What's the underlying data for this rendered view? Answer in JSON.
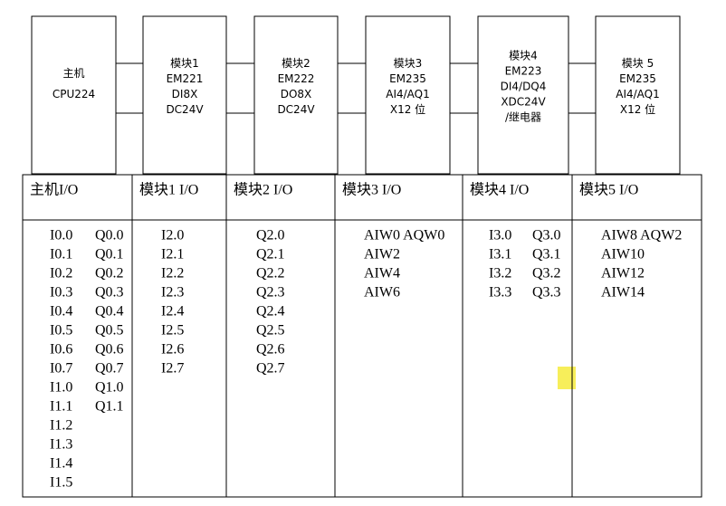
{
  "modules": [
    {
      "lines": [
        "主机",
        "CPU224"
      ]
    },
    {
      "lines": [
        "模块1",
        "EM221",
        "DI8X",
        "DC24V"
      ]
    },
    {
      "lines": [
        "模块2",
        "EM222",
        "DO8X",
        "DC24V"
      ]
    },
    {
      "lines": [
        "模块3",
        "EM235",
        "AI4/AQ1",
        "X12 位"
      ]
    },
    {
      "lines": [
        "模块4",
        "EM223",
        "DI4/DQ4",
        "XDC24V",
        "/继电器"
      ]
    },
    {
      "lines": [
        "模块 5",
        "EM235",
        "AI4/AQ1",
        "X12 位"
      ]
    }
  ],
  "table": {
    "headers": [
      "主机I/O",
      "模块1 I/O",
      "模块2 I/O",
      "模块3 I/O",
      "模块4 I/O",
      "模块5 I/O"
    ],
    "columns": [
      {
        "rows": [
          [
            "I0.0",
            "Q0.0"
          ],
          [
            "I0.1",
            "Q0.1"
          ],
          [
            "I0.2",
            "Q0.2"
          ],
          [
            "I0.3",
            "Q0.3"
          ],
          [
            "I0.4",
            "Q0.4"
          ],
          [
            "I0.5",
            "Q0.5"
          ],
          [
            "I0.6",
            "Q0.6"
          ],
          [
            "I0.7",
            "Q0.7"
          ],
          [
            "I1.0",
            "Q1.0"
          ],
          [
            "I1.1",
            "Q1.1"
          ],
          [
            "I1.2"
          ],
          [
            "I1.3"
          ],
          [
            "I1.4"
          ],
          [
            "I1.5"
          ]
        ]
      },
      {
        "rows": [
          [
            "I2.0"
          ],
          [
            "I2.1"
          ],
          [
            "I2.2"
          ],
          [
            "I2.3"
          ],
          [
            "I2.4"
          ],
          [
            "I2.5"
          ],
          [
            "I2.6"
          ],
          [
            "I2.7"
          ]
        ]
      },
      {
        "rows": [
          [
            "Q2.0"
          ],
          [
            "Q2.1"
          ],
          [
            "Q2.2"
          ],
          [
            "Q2.3"
          ],
          [
            "Q2.4"
          ],
          [
            "Q2.5"
          ],
          [
            "Q2.6"
          ],
          [
            "Q2.7"
          ]
        ]
      },
      {
        "rows": [
          [
            "AIW0 AQW0"
          ],
          [
            "AIW2"
          ],
          [
            "AIW4"
          ],
          [
            "AIW6"
          ]
        ]
      },
      {
        "rows": [
          [
            "I3.0",
            "Q3.0"
          ],
          [
            "I3.1",
            "Q3.1"
          ],
          [
            "I3.2",
            "Q3.2"
          ],
          [
            "I3.3",
            "Q3.3"
          ]
        ]
      },
      {
        "rows": [
          [
            "AIW8 AQW2"
          ],
          [
            "AIW10"
          ],
          [
            "AIW12"
          ],
          [
            "AIW14"
          ]
        ]
      }
    ]
  }
}
